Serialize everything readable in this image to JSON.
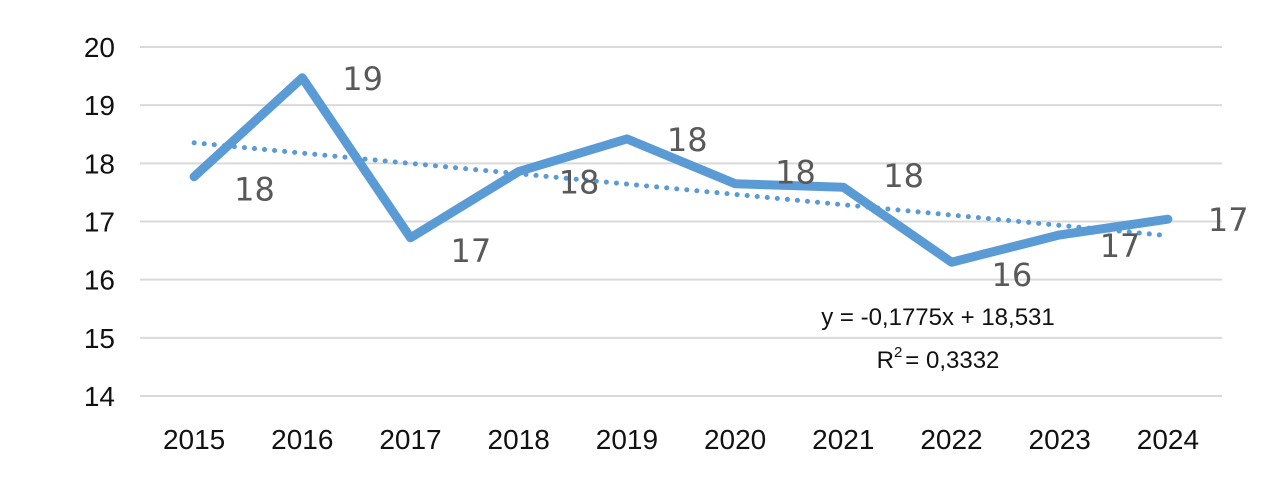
{
  "chart_data": {
    "type": "line",
    "title": "",
    "xlabel": "",
    "ylabel": "",
    "categories": [
      "2015",
      "2016",
      "2017",
      "2018",
      "2019",
      "2020",
      "2021",
      "2022",
      "2023",
      "2024"
    ],
    "series": [
      {
        "values": [
          17.77,
          19.47,
          16.72,
          17.86,
          18.42,
          17.65,
          17.59,
          16.3,
          16.77,
          17.04
        ],
        "data_labels": [
          "18",
          "19",
          "17",
          "18",
          "18",
          "18",
          "18",
          "16",
          "17",
          "17"
        ],
        "color": "#5b9bd5"
      }
    ],
    "trendline": {
      "type": "linear",
      "slope": -0.1775,
      "intercept": 18.531,
      "equation_label": "y = -0,1775x + 18,531",
      "r2_prefix": "R",
      "r2_exponent": "2",
      "r2_value": "= 0,3332",
      "color": "#5b9bd5",
      "style": "dotted"
    },
    "ylim": [
      14,
      20
    ],
    "yticks": [
      "14",
      "15",
      "16",
      "17",
      "18",
      "19",
      "20"
    ],
    "grid": true,
    "legend": "none"
  }
}
